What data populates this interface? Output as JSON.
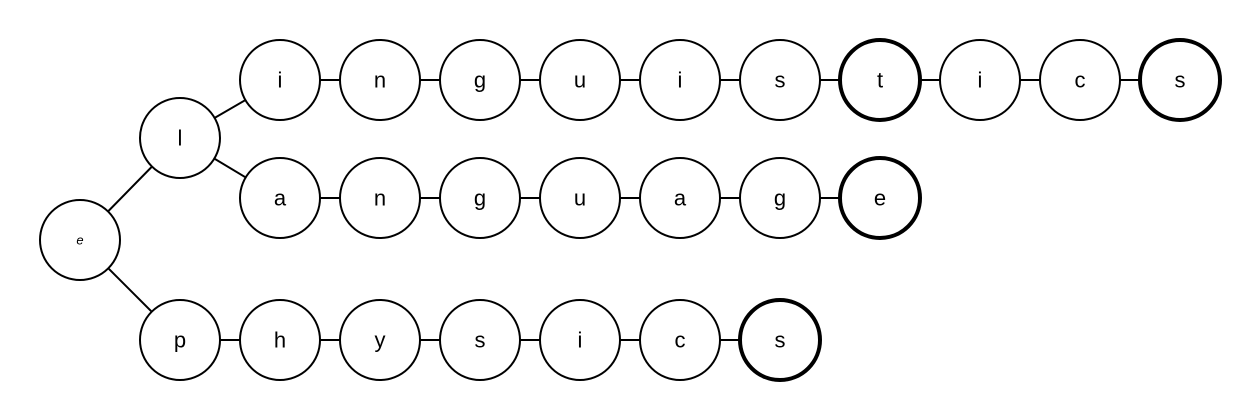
{
  "trie": {
    "root": {
      "label": "e"
    },
    "branches": [
      {
        "word": [
          "l",
          "i",
          "n",
          "g",
          "u",
          "i",
          "s",
          "t",
          "i",
          "c",
          "s"
        ],
        "terminal": [
          false,
          false,
          false,
          false,
          false,
          false,
          false,
          true,
          false,
          false,
          true
        ]
      },
      {
        "word": [
          "l",
          "a",
          "n",
          "g",
          "u",
          "a",
          "g",
          "e"
        ],
        "terminal": [
          false,
          false,
          false,
          false,
          false,
          false,
          false,
          true
        ]
      },
      {
        "word": [
          "p",
          "h",
          "y",
          "s",
          "i",
          "c",
          "s"
        ],
        "terminal": [
          false,
          false,
          false,
          false,
          false,
          false,
          true
        ]
      }
    ]
  }
}
